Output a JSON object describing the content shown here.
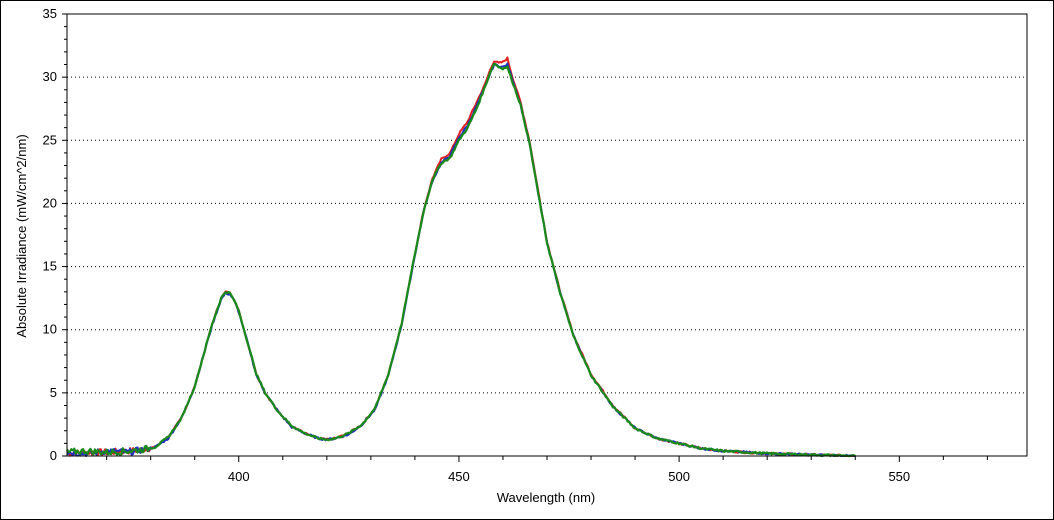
{
  "chart_data": {
    "type": "line",
    "title": "",
    "xlabel": "Wavelength (nm)",
    "ylabel": "Absolute Irradiance (mW/cm^2/nm)",
    "xlim": [
      361,
      579
    ],
    "ylim": [
      0,
      35
    ],
    "x_ticks": [
      400,
      450,
      500,
      550
    ],
    "y_ticks": [
      0,
      5,
      10,
      15,
      20,
      25,
      30,
      35
    ],
    "x_tick_labels": [
      "400",
      "450",
      "500",
      "550"
    ],
    "y_tick_labels": [
      "0",
      "5",
      "10",
      "15",
      "20",
      "25",
      "30",
      "35"
    ],
    "grid": {
      "horizontal": true,
      "vertical": false,
      "style": "dotted"
    },
    "legend": "none",
    "colors": {
      "series1": "#e02020",
      "series2": "#2030c0",
      "series3": "#1a8a1a",
      "grid": "#000000",
      "axis": "#000000"
    },
    "series": [
      {
        "color": "#e02020",
        "x": [
          361,
          365,
          370,
          375,
          378,
          381,
          384,
          387,
          390,
          392,
          394,
          396,
          397,
          398,
          399,
          400,
          402,
          404,
          406,
          409,
          412,
          415,
          418,
          420,
          422,
          425,
          428,
          431,
          434,
          437,
          440,
          442,
          444,
          446,
          448,
          450,
          452,
          454,
          456,
          457,
          458,
          459,
          460,
          461,
          462,
          464,
          466,
          468,
          470,
          473,
          476,
          480,
          485,
          490,
          495,
          500,
          505,
          510,
          520,
          530,
          540
        ],
        "y": [
          0.2,
          0.3,
          0.3,
          0.4,
          0.5,
          0.7,
          1.5,
          3.0,
          5.5,
          8.0,
          10.5,
          12.5,
          13.0,
          12.9,
          12.4,
          11.5,
          9.0,
          6.5,
          5.0,
          3.5,
          2.4,
          1.8,
          1.4,
          1.3,
          1.4,
          1.8,
          2.5,
          3.8,
          6.5,
          10.5,
          16.0,
          19.5,
          22.0,
          23.5,
          24.0,
          25.5,
          26.5,
          28.0,
          29.5,
          30.5,
          31.3,
          31.1,
          31.2,
          31.5,
          30.2,
          28.0,
          25.0,
          21.0,
          17.0,
          13.0,
          9.6,
          6.5,
          4.0,
          2.2,
          1.4,
          1.0,
          0.6,
          0.4,
          0.2,
          0.1,
          0.0
        ]
      },
      {
        "color": "#2030c0",
        "x": [
          361,
          365,
          370,
          375,
          378,
          381,
          384,
          387,
          390,
          392,
          394,
          396,
          397,
          398,
          399,
          400,
          402,
          404,
          406,
          409,
          412,
          415,
          418,
          420,
          422,
          425,
          428,
          431,
          434,
          437,
          440,
          442,
          444,
          446,
          448,
          450,
          452,
          454,
          456,
          457,
          458,
          459,
          460,
          461,
          462,
          464,
          466,
          468,
          470,
          473,
          476,
          480,
          485,
          490,
          495,
          500,
          505,
          510,
          520,
          530,
          540
        ],
        "y": [
          0.3,
          0.2,
          0.4,
          0.3,
          0.5,
          0.7,
          1.4,
          3.0,
          5.5,
          8.0,
          10.4,
          12.4,
          12.9,
          12.8,
          12.3,
          11.4,
          9.0,
          6.4,
          5.0,
          3.5,
          2.3,
          1.8,
          1.4,
          1.3,
          1.4,
          1.7,
          2.5,
          3.7,
          6.4,
          10.4,
          15.9,
          19.4,
          21.8,
          23.2,
          23.8,
          25.2,
          26.2,
          27.7,
          29.3,
          30.2,
          31.0,
          30.9,
          30.8,
          31.0,
          30.0,
          27.8,
          24.8,
          20.8,
          16.9,
          12.9,
          9.5,
          6.4,
          3.9,
          2.2,
          1.4,
          1.0,
          0.6,
          0.4,
          0.2,
          0.1,
          0.0
        ]
      },
      {
        "color": "#1a8a1a",
        "x": [
          361,
          365,
          370,
          375,
          378,
          381,
          384,
          387,
          390,
          392,
          394,
          396,
          397,
          398,
          399,
          400,
          402,
          404,
          406,
          409,
          412,
          415,
          418,
          420,
          422,
          425,
          428,
          431,
          434,
          437,
          440,
          442,
          444,
          446,
          448,
          450,
          452,
          454,
          456,
          457,
          458,
          459,
          460,
          461,
          462,
          464,
          466,
          468,
          470,
          473,
          476,
          480,
          485,
          490,
          495,
          500,
          505,
          510,
          520,
          530,
          540
        ],
        "y": [
          0.3,
          0.4,
          0.3,
          0.4,
          0.5,
          0.7,
          1.5,
          3.0,
          5.5,
          8.0,
          10.5,
          12.5,
          13.0,
          12.9,
          12.3,
          11.5,
          9.0,
          6.5,
          5.0,
          3.5,
          2.4,
          1.8,
          1.4,
          1.3,
          1.4,
          1.8,
          2.5,
          3.8,
          6.5,
          10.5,
          16.0,
          19.4,
          21.9,
          23.2,
          23.6,
          25.0,
          26.0,
          27.5,
          29.3,
          30.3,
          31.1,
          30.8,
          30.7,
          30.8,
          29.8,
          27.8,
          24.8,
          20.8,
          16.9,
          12.9,
          9.5,
          6.4,
          3.9,
          2.2,
          1.4,
          1.0,
          0.6,
          0.4,
          0.2,
          0.1,
          0.0
        ]
      }
    ]
  }
}
